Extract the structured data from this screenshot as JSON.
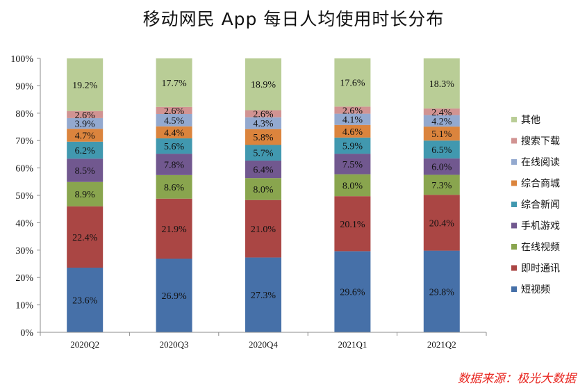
{
  "title": "移动网民 App 每日人均使用时长分布",
  "source": "数据来源：极光大数据",
  "chart_data": {
    "type": "bar",
    "stacked": true,
    "percent": true,
    "title": "移动网民 App 每日人均使用时长分布",
    "categories": [
      "2020Q2",
      "2020Q3",
      "2020Q4",
      "2021Q1",
      "2021Q2"
    ],
    "ylim": [
      0,
      100
    ],
    "yticks": [
      "0%",
      "10%",
      "20%",
      "30%",
      "40%",
      "50%",
      "60%",
      "70%",
      "80%",
      "90%",
      "100%"
    ],
    "legend_position": "right",
    "grid": false,
    "series": [
      {
        "name": "短视频",
        "color": "#4670a8",
        "values": [
          23.6,
          26.9,
          27.3,
          29.6,
          29.8
        ],
        "labels": [
          "23.6%",
          "26.9%",
          "27.3%",
          "29.6%",
          "29.8%"
        ]
      },
      {
        "name": "即时通讯",
        "color": "#aa4644",
        "values": [
          22.4,
          21.9,
          21.0,
          20.1,
          20.4
        ],
        "labels": [
          "22.4%",
          "21.9%",
          "21.0%",
          "20.1%",
          "20.4%"
        ]
      },
      {
        "name": "在线视频",
        "color": "#89a54e",
        "values": [
          8.9,
          8.6,
          8.0,
          8.0,
          7.3
        ],
        "labels": [
          "8.9%",
          "8.6%",
          "8.0%",
          "8.0%",
          "7.3%"
        ]
      },
      {
        "name": "手机游戏",
        "color": "#71588f",
        "values": [
          8.5,
          7.8,
          6.4,
          7.5,
          6.0
        ],
        "labels": [
          "8.5%",
          "7.8%",
          "6.4%",
          "7.5%",
          "6.0%"
        ]
      },
      {
        "name": "综合新闻",
        "color": "#4198af",
        "values": [
          6.2,
          5.6,
          5.7,
          5.9,
          6.5
        ],
        "labels": [
          "6.2%",
          "5.6%",
          "5.7%",
          "5.9%",
          "6.5%"
        ]
      },
      {
        "name": "综合商城",
        "color": "#db843d",
        "values": [
          4.7,
          4.4,
          5.8,
          4.6,
          5.1
        ],
        "labels": [
          "4.7%",
          "4.4%",
          "5.8%",
          "4.6%",
          "5.1%"
        ]
      },
      {
        "name": "在线阅读",
        "color": "#93a9cf",
        "values": [
          3.9,
          4.5,
          4.3,
          4.1,
          4.2
        ],
        "labels": [
          "3.9%",
          "4.5%",
          "4.3%",
          "4.1%",
          "4.2%"
        ]
      },
      {
        "name": "搜索下载",
        "color": "#d19392",
        "values": [
          2.6,
          2.6,
          2.6,
          2.6,
          2.4
        ],
        "labels": [
          "2.6%",
          "2.6%",
          "2.6%",
          "2.6%",
          "2.4%"
        ]
      },
      {
        "name": "其他",
        "color": "#b9cd96",
        "values": [
          19.2,
          17.7,
          18.9,
          17.6,
          18.3
        ],
        "labels": [
          "19.2%",
          "17.7%",
          "18.9%",
          "17.6%",
          "18.3%"
        ]
      }
    ]
  }
}
